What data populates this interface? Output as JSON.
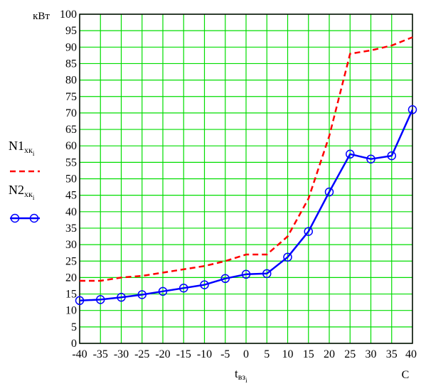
{
  "chart_data": {
    "type": "line",
    "y_unit_label": "кВт",
    "x_unit_label": "C",
    "xlabel": {
      "base": "t",
      "sub": "вз",
      "subsub": "i"
    },
    "xlim": [
      -40,
      40
    ],
    "ylim": [
      0,
      100
    ],
    "x_ticks": [
      -40,
      -35,
      -30,
      -25,
      -20,
      -15,
      -10,
      -5,
      0,
      5,
      10,
      15,
      20,
      25,
      30,
      35,
      40
    ],
    "y_ticks": [
      0,
      5,
      10,
      15,
      20,
      25,
      30,
      35,
      40,
      45,
      50,
      55,
      60,
      65,
      70,
      75,
      80,
      85,
      90,
      95,
      100
    ],
    "grid": true,
    "grid_color": "#00dd00",
    "x": [
      -40,
      -35,
      -30,
      -25,
      -20,
      -15,
      -10,
      -5,
      0,
      5,
      10,
      15,
      20,
      25,
      30,
      35,
      40
    ],
    "series": [
      {
        "legend": {
          "base": "N1",
          "sub": "хк",
          "subsub": "i"
        },
        "color": "#ff0000",
        "style": "dashed",
        "marker": "none",
        "values": [
          19,
          19,
          20,
          20.5,
          21.5,
          22.5,
          23.5,
          25,
          27,
          27,
          32.5,
          44,
          63,
          88,
          89,
          90.5,
          93
        ]
      },
      {
        "legend": {
          "base": "N2",
          "sub": "хк",
          "subsub": "i"
        },
        "color": "#0000ff",
        "style": "solid",
        "marker": "circle",
        "values": [
          13,
          13.3,
          14,
          14.8,
          15.8,
          16.8,
          17.8,
          19.7,
          21,
          21.2,
          26.2,
          34,
          46,
          57.5,
          56,
          57,
          71
        ]
      }
    ]
  }
}
